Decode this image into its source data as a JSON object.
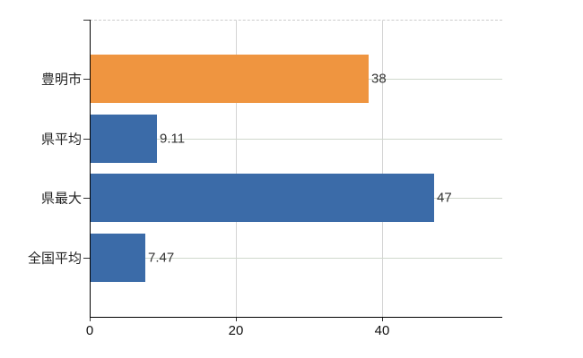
{
  "chart_data": {
    "type": "bar",
    "orientation": "horizontal",
    "categories": [
      "豊明市",
      "県平均",
      "県最大",
      "全国平均"
    ],
    "values": [
      38,
      9.11,
      47,
      7.47
    ],
    "value_labels": [
      "38",
      "9.11",
      "47",
      "7.47"
    ],
    "bar_colors": [
      "#EF9540",
      "#3B6BA8",
      "#3B6BA8",
      "#3B6BA8"
    ],
    "x_ticks": [
      0,
      20,
      40
    ],
    "x_tick_labels": [
      "0",
      "20",
      "40"
    ],
    "xlim": [
      0,
      56.4
    ],
    "grid": true,
    "legend": false,
    "title": "",
    "xlabel": "",
    "ylabel": ""
  },
  "colors": {
    "highlight_bar": "#EF9540",
    "default_bar": "#3B6BA8",
    "axis": "#000000",
    "tick": "#333333",
    "grid_vertical": "#d4d4d4",
    "grid_horizontal": "#d0d8cc",
    "plot_top_border": "#cccccc",
    "category_label": "#222222",
    "value_label": "#333333",
    "tick_label": "#111111",
    "background": "#ffffff"
  }
}
